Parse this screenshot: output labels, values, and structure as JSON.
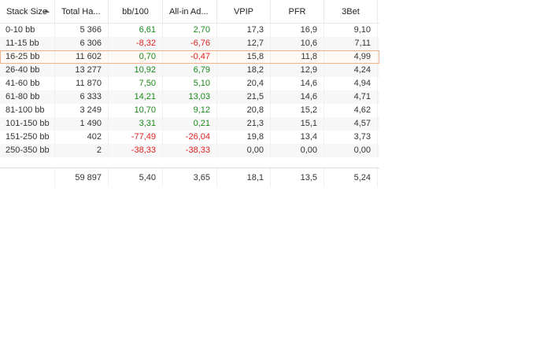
{
  "columns": [
    "Stack Size",
    "Total Ha...",
    "bb/100",
    "All-in Ad...",
    "VPIP",
    "PFR",
    "3Bet"
  ],
  "rows": [
    {
      "stack": "0-10 bb",
      "hands": "5 366",
      "bb100": "6,61",
      "bb100_sign": "pos",
      "allin": "2,70",
      "allin_sign": "pos",
      "vpip": "17,3",
      "pfr": "16,9",
      "threebet": "9,10"
    },
    {
      "stack": "11-15 bb",
      "hands": "6 306",
      "bb100": "-8,32",
      "bb100_sign": "neg",
      "allin": "-6,76",
      "allin_sign": "neg",
      "vpip": "12,7",
      "pfr": "10,6",
      "threebet": "7,11"
    },
    {
      "stack": "16-25 bb",
      "hands": "11 602",
      "bb100": "0,70",
      "bb100_sign": "pos",
      "allin": "-0,47",
      "allin_sign": "neg",
      "vpip": "15,8",
      "pfr": "11,8",
      "threebet": "4,99"
    },
    {
      "stack": "26-40 bb",
      "hands": "13 277",
      "bb100": "10,92",
      "bb100_sign": "pos",
      "allin": "6,79",
      "allin_sign": "pos",
      "vpip": "18,2",
      "pfr": "12,9",
      "threebet": "4,24"
    },
    {
      "stack": "41-60 bb",
      "hands": "11 870",
      "bb100": "7,50",
      "bb100_sign": "pos",
      "allin": "5,10",
      "allin_sign": "pos",
      "vpip": "20,4",
      "pfr": "14,6",
      "threebet": "4,94"
    },
    {
      "stack": "61-80 bb",
      "hands": "6 333",
      "bb100": "14,21",
      "bb100_sign": "pos",
      "allin": "13,03",
      "allin_sign": "pos",
      "vpip": "21,5",
      "pfr": "14,6",
      "threebet": "4,71"
    },
    {
      "stack": "81-100 bb",
      "hands": "3 249",
      "bb100": "10,70",
      "bb100_sign": "pos",
      "allin": "9,12",
      "allin_sign": "pos",
      "vpip": "20,8",
      "pfr": "15,2",
      "threebet": "4,62"
    },
    {
      "stack": "101-150 bb",
      "hands": "1 490",
      "bb100": "3,31",
      "bb100_sign": "pos",
      "allin": "0,21",
      "allin_sign": "pos",
      "vpip": "21,3",
      "pfr": "15,1",
      "threebet": "4,57"
    },
    {
      "stack": "151-250 bb",
      "hands": "402",
      "bb100": "-77,49",
      "bb100_sign": "neg",
      "allin": "-26,04",
      "allin_sign": "neg",
      "vpip": "19,8",
      "pfr": "13,4",
      "threebet": "3,73"
    },
    {
      "stack": "250-350 bb",
      "hands": "2",
      "bb100": "-38,33",
      "bb100_sign": "neg",
      "allin": "-38,33",
      "allin_sign": "neg",
      "vpip": "0,00",
      "pfr": "0,00",
      "threebet": "0,00"
    }
  ],
  "selected_row": 2,
  "sort": {
    "column": "Stack Size",
    "direction": "ascending"
  },
  "totals": {
    "stack": "",
    "hands": "59 897",
    "bb100": "5,40",
    "allin": "3,65",
    "vpip": "18,1",
    "pfr": "13,5",
    "threebet": "5,24"
  },
  "colors": {
    "positive": "#1a8a1a",
    "negative": "#e02020",
    "selection_border": "#f0b28a"
  }
}
